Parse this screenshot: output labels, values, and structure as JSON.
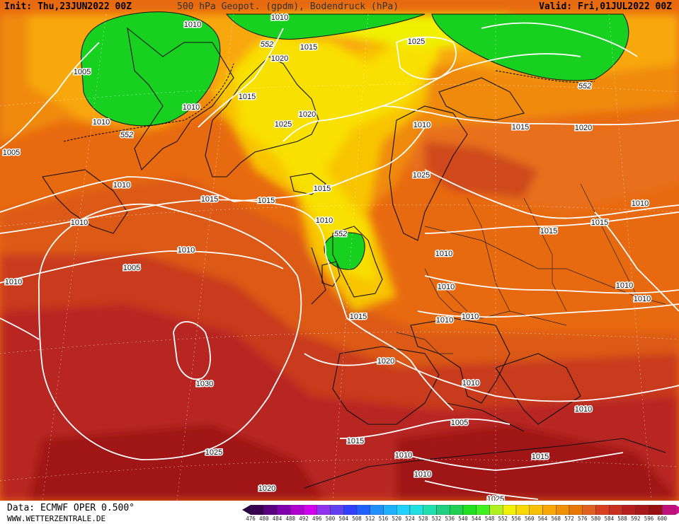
{
  "header": {
    "init_label": "Init: Thu,23JUN2022 00Z",
    "title": "500 hPa Geopot. (gpdm), Bodendruck (hPa)",
    "valid_label": "Valid: Fri,01JUL2022 00Z"
  },
  "footer": {
    "data_label": "Data: ECMWF OPER 0.500°",
    "website": "WWW.WETTERZENTRALE.DE"
  },
  "colorbar": {
    "values": [
      "476",
      "480",
      "484",
      "488",
      "492",
      "496",
      "500",
      "504",
      "508",
      "512",
      "516",
      "520",
      "524",
      "528",
      "532",
      "536",
      "540",
      "544",
      "548",
      "552",
      "556",
      "560",
      "564",
      "568",
      "572",
      "576",
      "580",
      "584",
      "588",
      "592",
      "596",
      "600"
    ],
    "colors": [
      "#3a0050",
      "#5a0080",
      "#8000b0",
      "#b000d0",
      "#d000f0",
      "#9030f0",
      "#6040f0",
      "#3040ff",
      "#2060ff",
      "#2090ff",
      "#20b0ff",
      "#20d0ff",
      "#20e0e0",
      "#20e0b0",
      "#20d080",
      "#20d050",
      "#20e020",
      "#40f020",
      "#b0f020",
      "#f0f000",
      "#f8d800",
      "#f8c000",
      "#f8a800",
      "#f09000",
      "#e87800",
      "#e06020",
      "#d84020",
      "#c83020",
      "#b82020",
      "#a81818",
      "#981010",
      "#c0107a"
    ]
  },
  "map_labels": {
    "isobars": [
      "1010",
      "1005",
      "1010",
      "1010",
      "1015",
      "1010",
      "1010",
      "1015",
      "1020",
      "1025",
      "1015",
      "1020",
      "1025",
      "1010",
      "1015",
      "1020",
      "1025",
      "1015",
      "1010",
      "1015",
      "1010",
      "1015",
      "1010",
      "1010",
      "1015",
      "1010",
      "1010",
      "1010",
      "1010",
      "1010",
      "1005",
      "1010",
      "1015",
      "1010",
      "1020",
      "1025",
      "1030",
      "1020",
      "1010",
      "1015",
      "1010",
      "1005",
      "1015",
      "1010",
      "1010",
      "1005",
      "1025",
      "1020",
      "1010",
      "015",
      "1020"
    ],
    "geopotential": [
      "552",
      "552",
      "552",
      "552"
    ]
  }
}
